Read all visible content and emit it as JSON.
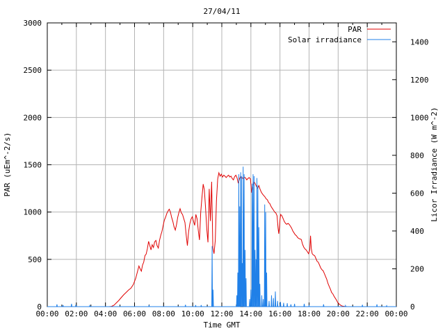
{
  "window": {
    "background": "#ffffff"
  },
  "chart_data": {
    "type": "line",
    "title": "27/04/11",
    "xlabel": "Time GMT",
    "ylabel_left": "PAR (uEm^-2/s)",
    "ylabel_right": "Licor Irradiance (W m^-2)",
    "grid": true,
    "legend_position": "top-right-inside",
    "colors": {
      "grid": "#b4b4b4",
      "axis": "#000000",
      "par": "#e00000",
      "solar": "#2080e8"
    },
    "x_axis": {
      "min_minutes": 0,
      "max_minutes": 1440,
      "major_step_minutes": 120,
      "minor_step_minutes": 60
    },
    "x_tick_labels": [
      "00:00",
      "02:00",
      "04:00",
      "06:00",
      "08:00",
      "10:00",
      "12:00",
      "14:00",
      "16:00",
      "18:00",
      "20:00",
      "22:00",
      "00:00"
    ],
    "y_left": {
      "min": 0,
      "max": 3000,
      "tick_step": 500,
      "tick_labels": [
        "0",
        "500",
        "1000",
        "1500",
        "2000",
        "2500",
        "3000"
      ]
    },
    "y_right": {
      "min": 0,
      "max": 1500,
      "tick_step": 200,
      "tick_max": 1400,
      "tick_labels": [
        "0",
        "200",
        "400",
        "600",
        "800",
        "1000",
        "1200",
        "1400"
      ]
    },
    "series": [
      {
        "name": "PAR",
        "axis": "left",
        "color": "#e00000",
        "points": [
          [
            0,
            0
          ],
          [
            60,
            0
          ],
          [
            120,
            0
          ],
          [
            180,
            0
          ],
          [
            240,
            0
          ],
          [
            255,
            0
          ],
          [
            265,
            3
          ],
          [
            275,
            15
          ],
          [
            285,
            40
          ],
          [
            295,
            65
          ],
          [
            305,
            95
          ],
          [
            315,
            125
          ],
          [
            325,
            150
          ],
          [
            335,
            175
          ],
          [
            345,
            195
          ],
          [
            355,
            235
          ],
          [
            365,
            300
          ],
          [
            372,
            370
          ],
          [
            378,
            430
          ],
          [
            383,
            400
          ],
          [
            388,
            375
          ],
          [
            393,
            440
          ],
          [
            398,
            470
          ],
          [
            403,
            540
          ],
          [
            408,
            555
          ],
          [
            413,
            615
          ],
          [
            418,
            690
          ],
          [
            423,
            645
          ],
          [
            428,
            600
          ],
          [
            433,
            655
          ],
          [
            438,
            625
          ],
          [
            443,
            685
          ],
          [
            448,
            700
          ],
          [
            453,
            645
          ],
          [
            458,
            620
          ],
          [
            463,
            700
          ],
          [
            468,
            755
          ],
          [
            473,
            795
          ],
          [
            478,
            855
          ],
          [
            483,
            915
          ],
          [
            488,
            945
          ],
          [
            493,
            985
          ],
          [
            498,
            1010
          ],
          [
            503,
            1030
          ],
          [
            508,
            1000
          ],
          [
            513,
            945
          ],
          [
            518,
            900
          ],
          [
            523,
            845
          ],
          [
            528,
            810
          ],
          [
            533,
            865
          ],
          [
            538,
            945
          ],
          [
            543,
            995
          ],
          [
            548,
            1035
          ],
          [
            553,
            990
          ],
          [
            558,
            975
          ],
          [
            563,
            930
          ],
          [
            568,
            890
          ],
          [
            573,
            755
          ],
          [
            578,
            645
          ],
          [
            583,
            790
          ],
          [
            588,
            875
          ],
          [
            593,
            925
          ],
          [
            598,
            950
          ],
          [
            603,
            905
          ],
          [
            608,
            860
          ],
          [
            613,
            975
          ],
          [
            618,
            930
          ],
          [
            623,
            805
          ],
          [
            628,
            705
          ],
          [
            633,
            1000
          ],
          [
            638,
            1150
          ],
          [
            643,
            1295
          ],
          [
            648,
            1235
          ],
          [
            653,
            1050
          ],
          [
            658,
            820
          ],
          [
            663,
            680
          ],
          [
            668,
            1245
          ],
          [
            673,
            905
          ],
          [
            678,
            1320
          ],
          [
            683,
            625
          ],
          [
            688,
            560
          ],
          [
            693,
            700
          ],
          [
            698,
            1120
          ],
          [
            703,
            1350
          ],
          [
            708,
            1415
          ],
          [
            713,
            1380
          ],
          [
            718,
            1400
          ],
          [
            723,
            1370
          ],
          [
            728,
            1390
          ],
          [
            733,
            1380
          ],
          [
            738,
            1365
          ],
          [
            743,
            1380
          ],
          [
            748,
            1390
          ],
          [
            753,
            1370
          ],
          [
            758,
            1380
          ],
          [
            763,
            1355
          ],
          [
            768,
            1340
          ],
          [
            773,
            1375
          ],
          [
            778,
            1390
          ],
          [
            783,
            1360
          ],
          [
            788,
            1305
          ],
          [
            793,
            1350
          ],
          [
            798,
            1380
          ],
          [
            803,
            1365
          ],
          [
            808,
            1350
          ],
          [
            813,
            1370
          ],
          [
            818,
            1360
          ],
          [
            823,
            1340
          ],
          [
            828,
            1355
          ],
          [
            833,
            1365
          ],
          [
            838,
            1350
          ],
          [
            843,
            1205
          ],
          [
            848,
            1260
          ],
          [
            853,
            1320
          ],
          [
            858,
            1300
          ],
          [
            863,
            1270
          ],
          [
            868,
            1250
          ],
          [
            873,
            1280
          ],
          [
            878,
            1240
          ],
          [
            883,
            1210
          ],
          [
            888,
            1190
          ],
          [
            893,
            1175
          ],
          [
            898,
            1160
          ],
          [
            903,
            1140
          ],
          [
            908,
            1130
          ],
          [
            913,
            1100
          ],
          [
            918,
            1090
          ],
          [
            923,
            1060
          ],
          [
            928,
            1040
          ],
          [
            933,
            1020
          ],
          [
            938,
            1000
          ],
          [
            943,
            990
          ],
          [
            948,
            960
          ],
          [
            952,
            830
          ],
          [
            955,
            770
          ],
          [
            958,
            850
          ],
          [
            960,
            920
          ],
          [
            963,
            975
          ],
          [
            968,
            960
          ],
          [
            973,
            930
          ],
          [
            978,
            900
          ],
          [
            983,
            880
          ],
          [
            988,
            870
          ],
          [
            993,
            880
          ],
          [
            998,
            870
          ],
          [
            1003,
            850
          ],
          [
            1008,
            830
          ],
          [
            1013,
            800
          ],
          [
            1018,
            780
          ],
          [
            1023,
            760
          ],
          [
            1028,
            750
          ],
          [
            1033,
            730
          ],
          [
            1038,
            720
          ],
          [
            1043,
            715
          ],
          [
            1048,
            710
          ],
          [
            1053,
            660
          ],
          [
            1058,
            630
          ],
          [
            1063,
            610
          ],
          [
            1068,
            600
          ],
          [
            1073,
            580
          ],
          [
            1078,
            560
          ],
          [
            1083,
            600
          ],
          [
            1086,
            750
          ],
          [
            1089,
            620
          ],
          [
            1093,
            560
          ],
          [
            1098,
            545
          ],
          [
            1103,
            540
          ],
          [
            1108,
            510
          ],
          [
            1113,
            480
          ],
          [
            1118,
            470
          ],
          [
            1123,
            440
          ],
          [
            1128,
            410
          ],
          [
            1133,
            390
          ],
          [
            1138,
            380
          ],
          [
            1143,
            350
          ],
          [
            1148,
            320
          ],
          [
            1153,
            290
          ],
          [
            1158,
            245
          ],
          [
            1163,
            215
          ],
          [
            1168,
            185
          ],
          [
            1173,
            150
          ],
          [
            1178,
            135
          ],
          [
            1183,
            110
          ],
          [
            1188,
            90
          ],
          [
            1193,
            70
          ],
          [
            1198,
            45
          ],
          [
            1203,
            30
          ],
          [
            1208,
            20
          ],
          [
            1213,
            10
          ],
          [
            1218,
            5
          ],
          [
            1228,
            2
          ],
          [
            1238,
            0
          ],
          [
            1300,
            0
          ],
          [
            1380,
            0
          ],
          [
            1440,
            0
          ]
        ]
      },
      {
        "name": "Solar irradiance",
        "axis": "right",
        "color": "#2080e8",
        "baseline": 0,
        "spike_half_width_minutes": 1.5,
        "spikes": [
          [
            40,
            12
          ],
          [
            65,
            8
          ],
          [
            100,
            15
          ],
          [
            118,
            10
          ],
          [
            175,
            6
          ],
          [
            420,
            8
          ],
          [
            570,
            10
          ],
          [
            612,
            8
          ],
          [
            635,
            8
          ],
          [
            680,
            320
          ],
          [
            684,
            90
          ],
          [
            782,
            60
          ],
          [
            786,
            180
          ],
          [
            790,
            700
          ],
          [
            794,
            530
          ],
          [
            798,
            710
          ],
          [
            801,
            690
          ],
          [
            805,
            230
          ],
          [
            808,
            740
          ],
          [
            812,
            700
          ],
          [
            816,
            300
          ],
          [
            820,
            150
          ],
          [
            835,
            40
          ],
          [
            840,
            90
          ],
          [
            845,
            650
          ],
          [
            849,
            700
          ],
          [
            853,
            690
          ],
          [
            857,
            300
          ],
          [
            861,
            250
          ],
          [
            865,
            680
          ],
          [
            869,
            640
          ],
          [
            873,
            420
          ],
          [
            877,
            120
          ],
          [
            885,
            60
          ],
          [
            891,
            40
          ],
          [
            897,
            540
          ],
          [
            901,
            500
          ],
          [
            905,
            180
          ],
          [
            915,
            30
          ],
          [
            925,
            60
          ],
          [
            933,
            45
          ],
          [
            941,
            80
          ],
          [
            950,
            30
          ],
          [
            962,
            25
          ],
          [
            975,
            20
          ],
          [
            990,
            18
          ],
          [
            1005,
            12
          ],
          [
            1020,
            15
          ],
          [
            1060,
            15
          ],
          [
            1080,
            8
          ],
          [
            1140,
            12
          ],
          [
            1230,
            6
          ],
          [
            1300,
            10
          ],
          [
            1360,
            12
          ],
          [
            1400,
            5
          ]
        ]
      }
    ]
  }
}
